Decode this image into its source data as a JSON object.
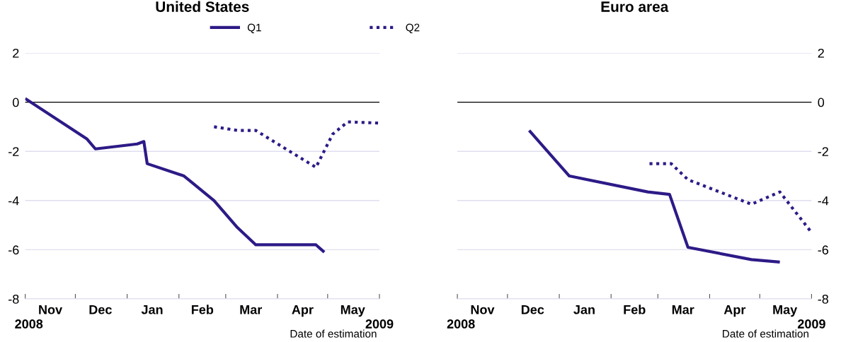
{
  "chart_data": [
    {
      "type": "line",
      "title": "United States",
      "xlabel": "Date of estimation",
      "annotations": [
        "2008",
        "2009"
      ],
      "xlim": [
        "2008-11-01",
        "2009-06-01"
      ],
      "xticks": [
        {
          "value": "2008-11-01",
          "label": null
        },
        {
          "value": "2008-11-16",
          "label": "Nov"
        },
        {
          "value": "2008-12-01",
          "label": null
        },
        {
          "value": "2008-12-16",
          "label": "Dec"
        },
        {
          "value": "2009-01-01",
          "label": null
        },
        {
          "value": "2009-01-16",
          "label": "Jan"
        },
        {
          "value": "2009-02-01",
          "label": null
        },
        {
          "value": "2009-02-15",
          "label": "Feb"
        },
        {
          "value": "2009-03-01",
          "label": null
        },
        {
          "value": "2009-03-16",
          "label": "Mar"
        },
        {
          "value": "2009-04-01",
          "label": null
        },
        {
          "value": "2009-04-16",
          "label": "Apr"
        },
        {
          "value": "2009-05-01",
          "label": null
        },
        {
          "value": "2009-05-16",
          "label": "May"
        },
        {
          "value": "2009-06-01",
          "label": null
        }
      ],
      "ylim": [
        -8,
        2
      ],
      "yticks": [
        -8,
        -6,
        -4,
        -2,
        0,
        2
      ],
      "grid": "y",
      "legend": "top",
      "ref_lines": [
        {
          "axis": "y",
          "value": 0,
          "color": "#000000"
        }
      ],
      "series": [
        {
          "name": "Q1",
          "color": "#2e1a87",
          "line_style": "solid",
          "x": [
            "2008-11-01",
            "2008-12-08",
            "2008-12-13",
            "2009-01-07",
            "2009-01-11",
            "2009-01-13",
            "2009-02-04",
            "2009-02-22",
            "2009-03-08",
            "2009-03-19",
            "2009-04-24",
            "2009-04-29"
          ],
          "values": [
            0.15,
            -1.5,
            -1.9,
            -1.7,
            -1.6,
            -2.5,
            -3.0,
            -4.0,
            -5.1,
            -5.8,
            -5.8,
            -6.1
          ]
        },
        {
          "name": "Q2",
          "color": "#2e1a87",
          "line_style": "dotted",
          "x": [
            "2009-02-22",
            "2009-03-08",
            "2009-03-19",
            "2009-04-24",
            "2009-05-04",
            "2009-05-13",
            "2009-06-01"
          ],
          "values": [
            -1.0,
            -1.15,
            -1.15,
            -2.65,
            -1.3,
            -0.8,
            -0.85
          ]
        }
      ]
    },
    {
      "type": "line",
      "title": "Euro area",
      "xlabel": "Date of estimation",
      "annotations": [
        "2008",
        "2009"
      ],
      "xlim": [
        "2008-11-01",
        "2009-06-01"
      ],
      "xticks": [
        {
          "value": "2008-11-01",
          "label": null
        },
        {
          "value": "2008-11-16",
          "label": "Nov"
        },
        {
          "value": "2008-12-01",
          "label": null
        },
        {
          "value": "2008-12-16",
          "label": "Dec"
        },
        {
          "value": "2009-01-01",
          "label": null
        },
        {
          "value": "2009-01-16",
          "label": "Jan"
        },
        {
          "value": "2009-02-01",
          "label": null
        },
        {
          "value": "2009-02-15",
          "label": "Feb"
        },
        {
          "value": "2009-03-01",
          "label": null
        },
        {
          "value": "2009-03-16",
          "label": "Mar"
        },
        {
          "value": "2009-04-01",
          "label": null
        },
        {
          "value": "2009-04-16",
          "label": "Apr"
        },
        {
          "value": "2009-05-01",
          "label": null
        },
        {
          "value": "2009-05-16",
          "label": "May"
        },
        {
          "value": "2009-06-01",
          "label": null
        }
      ],
      "ylim": [
        -8,
        2
      ],
      "yticks": [
        -8,
        -6,
        -4,
        -2,
        0,
        2
      ],
      "grid": "y",
      "ref_lines": [
        {
          "axis": "y",
          "value": 0,
          "color": "#000000"
        }
      ],
      "series": [
        {
          "color": "#2e1a87",
          "line_style": "solid",
          "x": [
            "2008-12-14",
            "2009-01-07",
            "2009-02-23",
            "2009-03-08",
            "2009-03-19",
            "2009-04-26",
            "2009-05-13"
          ],
          "values": [
            -1.15,
            -3.0,
            -3.65,
            -3.75,
            -5.9,
            -6.4,
            -6.5
          ]
        },
        {
          "color": "#2e1a87",
          "line_style": "dotted",
          "x": [
            "2009-02-24",
            "2009-03-09",
            "2009-03-19",
            "2009-04-26",
            "2009-05-13",
            "2009-06-01"
          ],
          "values": [
            -2.5,
            -2.5,
            -3.15,
            -4.15,
            -3.65,
            -5.3
          ]
        }
      ]
    }
  ]
}
